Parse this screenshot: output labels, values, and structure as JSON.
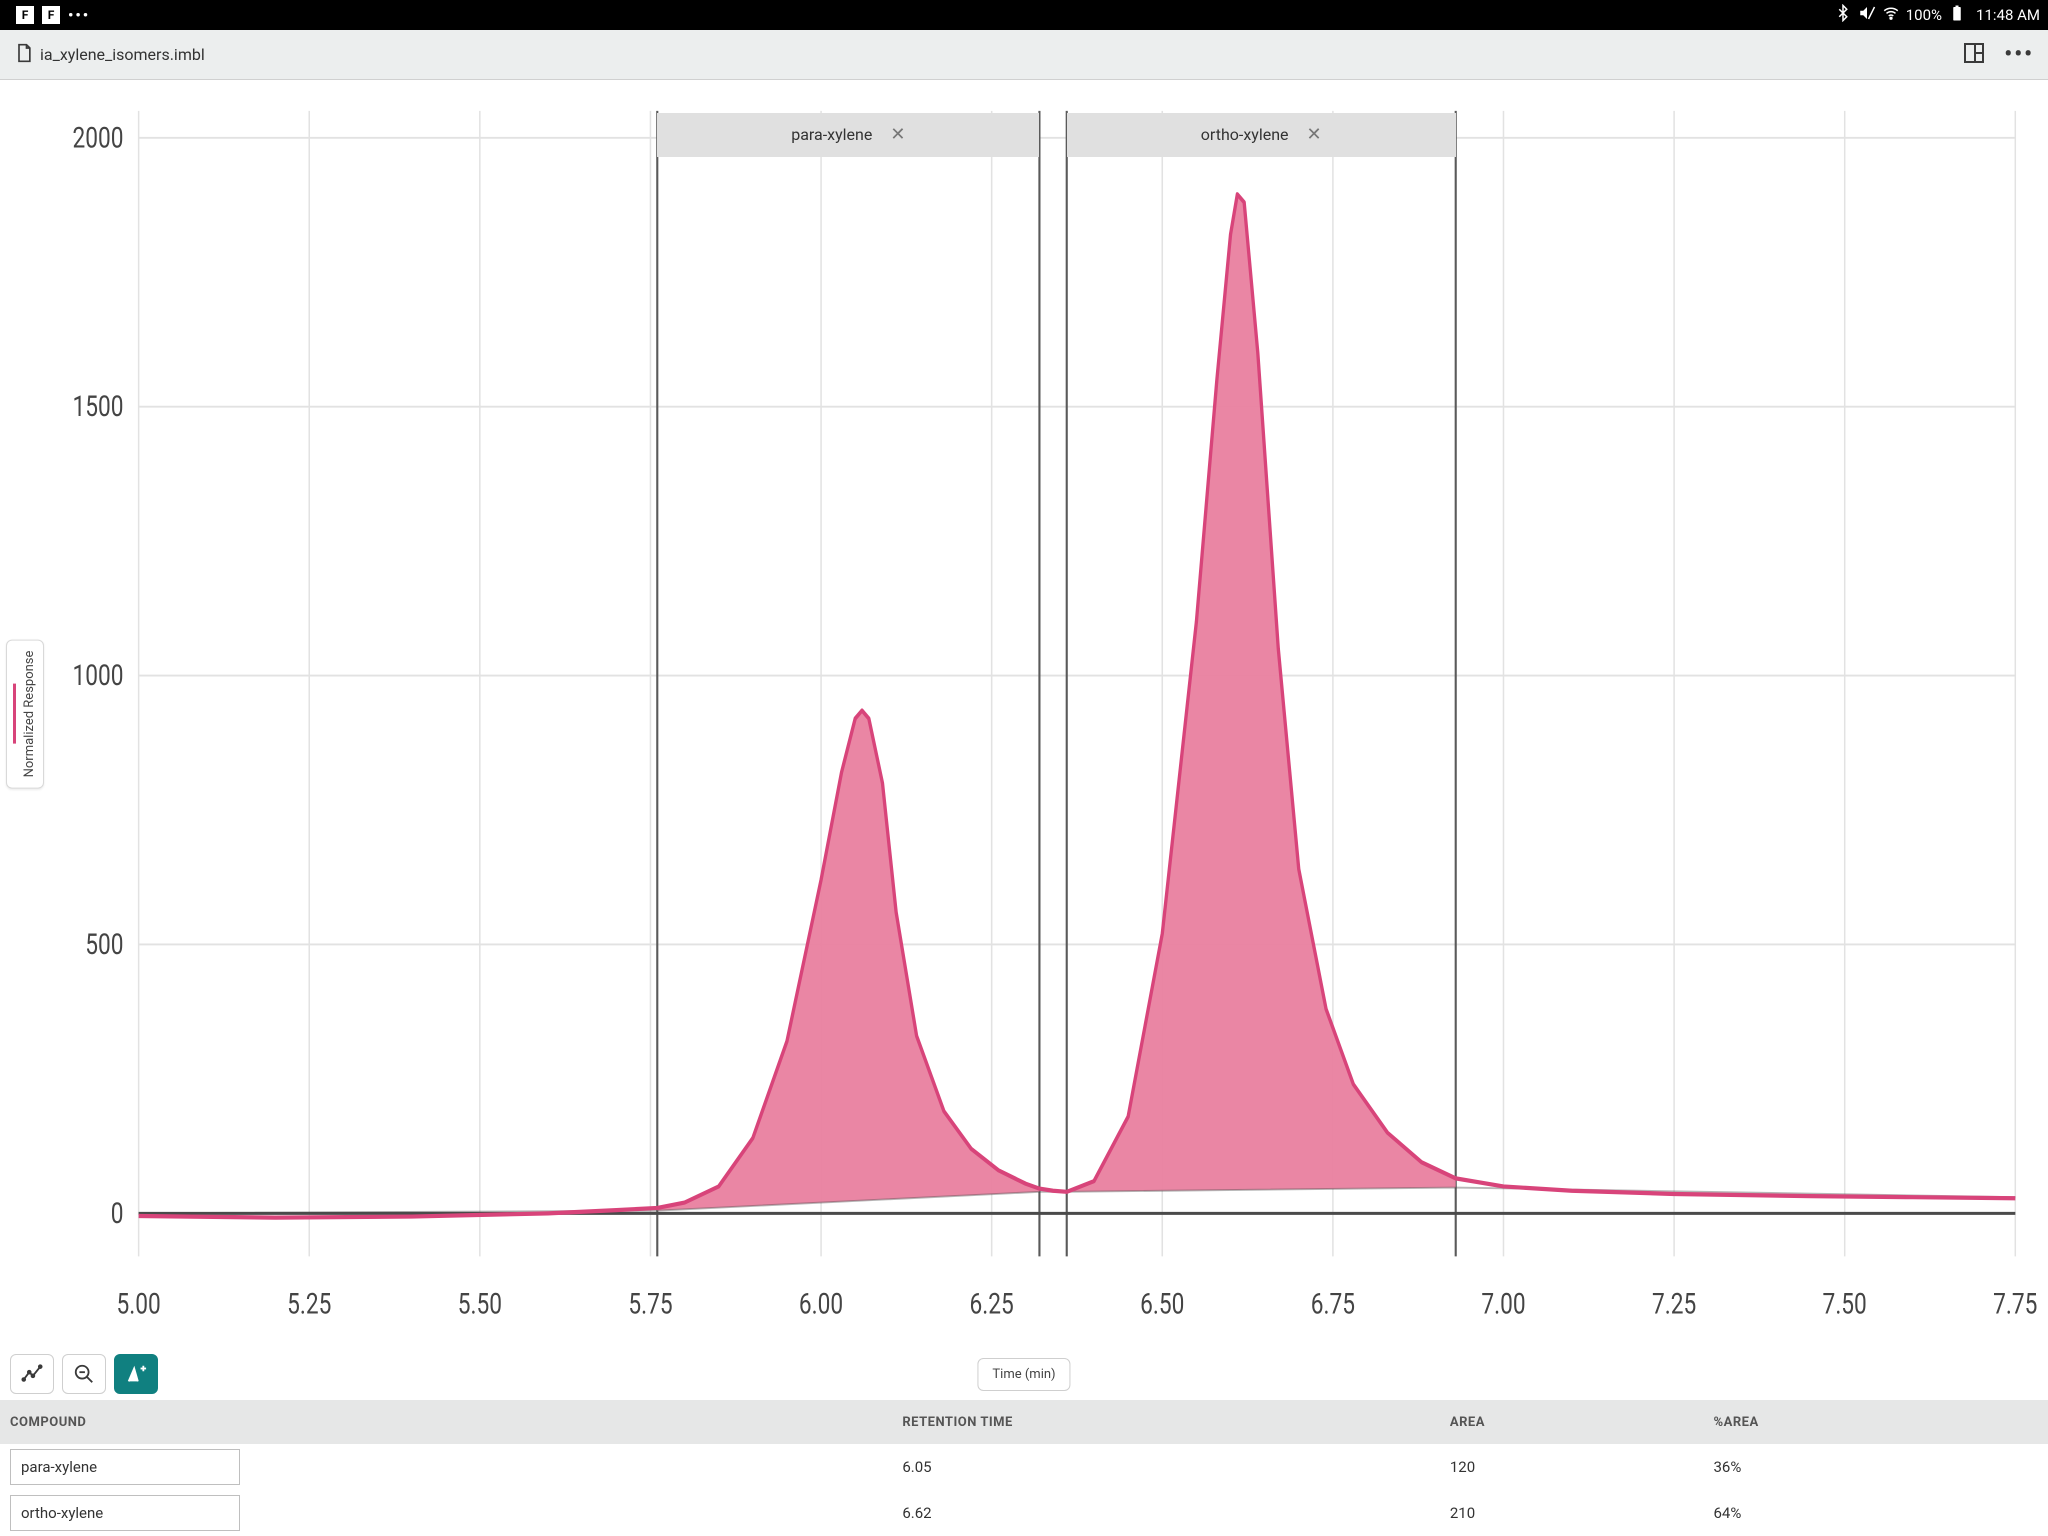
{
  "statusbar": {
    "battery_pct": "100%",
    "time": "11:48 AM"
  },
  "header": {
    "filename": "ia_xylene_isomers.imbl"
  },
  "chart": {
    "type": "area",
    "y_axis_label": "Normalized Response",
    "x_axis_label": "Time (min)",
    "xlim": [
      5.0,
      7.75
    ],
    "ylim": [
      -80,
      2050
    ],
    "x_ticks": [
      "5.00",
      "5.25",
      "5.50",
      "5.75",
      "6.00",
      "6.25",
      "6.50",
      "6.75",
      "7.00",
      "7.25",
      "7.50",
      "7.75"
    ],
    "y_ticks": [
      "0",
      "500",
      "1000",
      "1500",
      "2000"
    ],
    "grid_color": "#e2e2e2",
    "baseline_color": "#4a4a4a",
    "line_color": "#d8447a",
    "fill_color": "#e9809f",
    "fill_opacity": 0.95,
    "background_color": "#ffffff",
    "regions": [
      {
        "label": "para-xylene",
        "x_start": 5.76,
        "x_end": 6.32,
        "tag_bg": "#e0e0e0",
        "border_color": "#5a5a5a"
      },
      {
        "label": "ortho-xylene",
        "x_start": 6.36,
        "x_end": 6.93,
        "tag_bg": "#e0e0e0",
        "border_color": "#5a5a5a"
      }
    ],
    "baseline_points": [
      {
        "x": 5.0,
        "y": 0
      },
      {
        "x": 5.76,
        "y": 5
      },
      {
        "x": 6.32,
        "y": 40
      },
      {
        "x": 6.36,
        "y": 40
      },
      {
        "x": 6.93,
        "y": 48
      },
      {
        "x": 7.75,
        "y": 30
      }
    ],
    "trace_points": [
      {
        "x": 5.0,
        "y": -5
      },
      {
        "x": 5.2,
        "y": -8
      },
      {
        "x": 5.4,
        "y": -6
      },
      {
        "x": 5.6,
        "y": 0
      },
      {
        "x": 5.7,
        "y": 6
      },
      {
        "x": 5.76,
        "y": 10
      },
      {
        "x": 5.8,
        "y": 20
      },
      {
        "x": 5.85,
        "y": 50
      },
      {
        "x": 5.9,
        "y": 140
      },
      {
        "x": 5.95,
        "y": 320
      },
      {
        "x": 6.0,
        "y": 620
      },
      {
        "x": 6.03,
        "y": 820
      },
      {
        "x": 6.05,
        "y": 920
      },
      {
        "x": 6.06,
        "y": 935
      },
      {
        "x": 6.07,
        "y": 920
      },
      {
        "x": 6.09,
        "y": 800
      },
      {
        "x": 6.11,
        "y": 560
      },
      {
        "x": 6.14,
        "y": 330
      },
      {
        "x": 6.18,
        "y": 190
      },
      {
        "x": 6.22,
        "y": 120
      },
      {
        "x": 6.26,
        "y": 80
      },
      {
        "x": 6.3,
        "y": 55
      },
      {
        "x": 6.32,
        "y": 46
      },
      {
        "x": 6.34,
        "y": 42
      },
      {
        "x": 6.36,
        "y": 40
      },
      {
        "x": 6.4,
        "y": 60
      },
      {
        "x": 6.45,
        "y": 180
      },
      {
        "x": 6.5,
        "y": 520
      },
      {
        "x": 6.55,
        "y": 1100
      },
      {
        "x": 6.58,
        "y": 1550
      },
      {
        "x": 6.6,
        "y": 1820
      },
      {
        "x": 6.61,
        "y": 1895
      },
      {
        "x": 6.62,
        "y": 1880
      },
      {
        "x": 6.64,
        "y": 1600
      },
      {
        "x": 6.67,
        "y": 1050
      },
      {
        "x": 6.7,
        "y": 640
      },
      {
        "x": 6.74,
        "y": 380
      },
      {
        "x": 6.78,
        "y": 240
      },
      {
        "x": 6.83,
        "y": 150
      },
      {
        "x": 6.88,
        "y": 95
      },
      {
        "x": 6.93,
        "y": 65
      },
      {
        "x": 7.0,
        "y": 50
      },
      {
        "x": 7.1,
        "y": 42
      },
      {
        "x": 7.25,
        "y": 36
      },
      {
        "x": 7.45,
        "y": 32
      },
      {
        "x": 7.6,
        "y": 30
      },
      {
        "x": 7.75,
        "y": 28
      }
    ]
  },
  "table": {
    "headers": {
      "compound": "COMPOUND",
      "rt": "RETENTION TIME",
      "area": "AREA",
      "parea": "%AREA"
    },
    "rows": [
      {
        "compound": "para-xylene",
        "rt": "6.05",
        "area": "120",
        "parea": "36%"
      },
      {
        "compound": "ortho-xylene",
        "rt": "6.62",
        "area": "210",
        "parea": "64%"
      }
    ]
  }
}
